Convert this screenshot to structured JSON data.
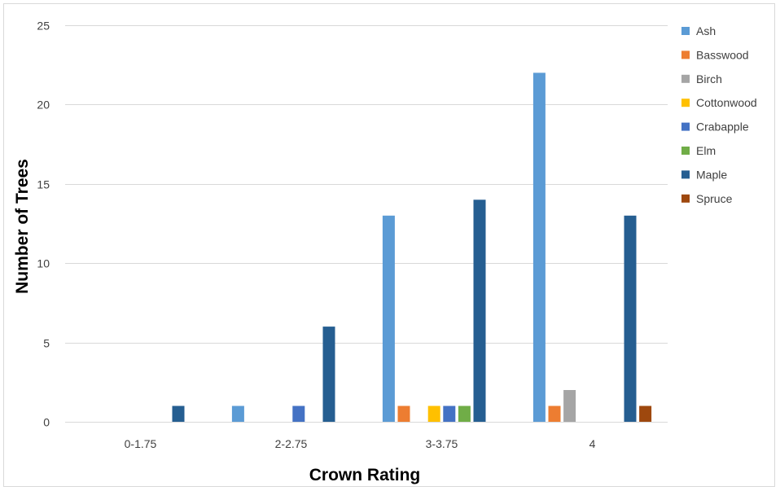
{
  "chart_data": {
    "type": "bar",
    "title": "",
    "xlabel": "Crown Rating",
    "ylabel": "Number of Trees",
    "ylim": [
      0,
      25
    ],
    "yticks": [
      0,
      5,
      10,
      15,
      20,
      25
    ],
    "grid": true,
    "legend_position": "right",
    "categories": [
      "0-1.75",
      "2-2.75",
      "3-3.75",
      "4"
    ],
    "series": [
      {
        "name": "Ash",
        "color": "#5b9bd5",
        "values": [
          0,
          1,
          13,
          22
        ]
      },
      {
        "name": "Basswood",
        "color": "#ed7d31",
        "values": [
          0,
          0,
          1,
          1
        ]
      },
      {
        "name": "Birch",
        "color": "#a5a5a5",
        "values": [
          0,
          0,
          0,
          2
        ]
      },
      {
        "name": "Cottonwood",
        "color": "#ffc000",
        "values": [
          0,
          0,
          1,
          0
        ]
      },
      {
        "name": "Crabapple",
        "color": "#4472c4",
        "values": [
          0,
          1,
          1,
          0
        ]
      },
      {
        "name": "Elm",
        "color": "#70ad47",
        "values": [
          0,
          0,
          1,
          0
        ]
      },
      {
        "name": "Maple",
        "color": "#255e91",
        "values": [
          1,
          6,
          14,
          13
        ]
      },
      {
        "name": "Spruce",
        "color": "#9e480e",
        "values": [
          0,
          0,
          0,
          1
        ]
      }
    ]
  }
}
